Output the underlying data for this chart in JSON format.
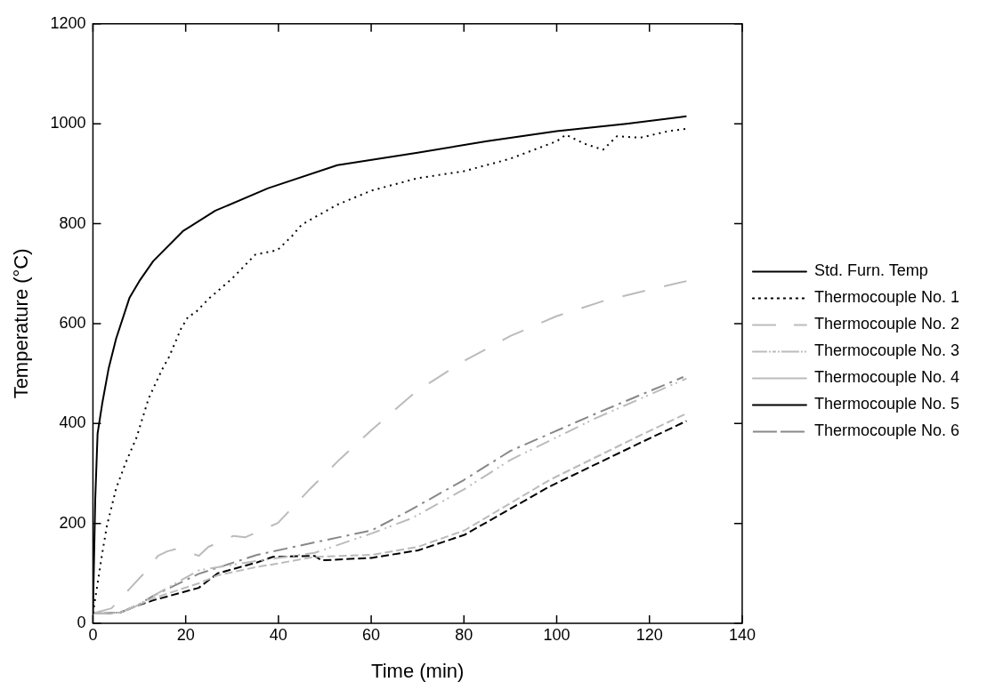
{
  "chart_data": {
    "type": "line",
    "xlabel": "Time (min)",
    "ylabel": "Temperature (°C)",
    "xlim": [
      0,
      140
    ],
    "xticks": [
      0,
      20,
      40,
      60,
      80,
      100,
      120,
      140
    ],
    "ylim": [
      0,
      1200
    ],
    "yticks": [
      0,
      200,
      400,
      600,
      800,
      1000,
      1200
    ],
    "grid": false,
    "legend": "right",
    "marker": "none",
    "series": [
      {
        "name": "Std. Furn. Temp",
        "color": "#000000",
        "line_style": "solid",
        "x": [
          0,
          0.5,
          1,
          2,
          3.4,
          5,
          7.9,
          10,
          13,
          19.4,
          26.4,
          37.8,
          52.7,
          70,
          85,
          100,
          115,
          128
        ],
        "values": [
          20,
          250,
          380,
          440,
          511,
          570,
          652,
          685,
          725,
          785,
          826,
          871,
          917,
          942,
          965,
          985,
          1000,
          1015
        ]
      },
      {
        "name": "Thermocouple No. 1",
        "color": "#000000",
        "line_style": "dotted",
        "x": [
          0,
          1,
          2,
          3,
          5,
          7,
          9.4,
          12,
          14.9,
          16.4,
          19,
          20.6,
          22,
          25,
          30,
          35,
          39.8,
          43,
          45,
          52.7,
          60,
          70,
          80,
          90,
          100,
          102,
          106,
          110,
          113,
          118,
          124,
          128
        ],
        "values": [
          20,
          80,
          140,
          195,
          270,
          320,
          372,
          450,
          508,
          533,
          590,
          615,
          621,
          650,
          690,
          738,
          747,
          776,
          798,
          838,
          866,
          891,
          905,
          930,
          965,
          978,
          960,
          948,
          975,
          972,
          985,
          990
        ]
      },
      {
        "name": "Thermocouple No. 2",
        "color": "#bbbbbb",
        "line_style": "longdash",
        "x": [
          0,
          4,
          8,
          12,
          14,
          16,
          18.4,
          22.8,
          24.9,
          30.3,
          32.8,
          39.9,
          46.7,
          53.3,
          60.1,
          69.7,
          80,
          90,
          100,
          110,
          120,
          128
        ],
        "values": [
          20,
          30,
          70,
          110,
          135,
          144,
          150,
          135,
          153,
          175,
          172,
          201,
          268,
          329,
          387,
          464,
          525,
          575,
          615,
          645,
          668,
          685
        ]
      },
      {
        "name": "Thermocouple No. 3",
        "color": "#bbbbbb",
        "line_style": "dashdotdot",
        "x": [
          0,
          3,
          6,
          9.4,
          13,
          22.8,
          35.4,
          47.8,
          60.1,
          68.7,
          80,
          90,
          108.5,
          128
        ],
        "values": [
          20,
          20,
          22,
          35,
          55,
          106,
          125,
          141,
          180,
          210,
          268,
          327,
          411,
          490
        ]
      },
      {
        "name": "Thermocouple No. 4",
        "color": "#bbbbbb",
        "line_style": "dashed",
        "x": [
          0,
          3,
          6,
          9.4,
          13,
          22.8,
          26.9,
          35.4,
          38.8,
          47.8,
          60.1,
          70.1,
          80.1,
          98.5,
          118.4,
          128
        ],
        "values": [
          20,
          20,
          22,
          35,
          50,
          80,
          96,
          113,
          118,
          133,
          137,
          153,
          186,
          287,
          378,
          420
        ]
      },
      {
        "name": "Thermocouple No. 5",
        "color": "#000000",
        "line_style": "dashed",
        "x": [
          0,
          3,
          6,
          9.4,
          13,
          22.8,
          26.9,
          35.4,
          38.8,
          47.8,
          49.3,
          60.1,
          70.1,
          80.1,
          98.5,
          118.4,
          128
        ],
        "values": [
          20,
          20,
          22,
          35,
          46,
          71,
          100,
          122,
          133,
          135,
          126,
          131,
          146,
          177,
          274,
          363,
          405
        ]
      },
      {
        "name": "Thermocouple No. 6",
        "color": "#888888",
        "line_style": "dashdot",
        "x": [
          0,
          3,
          6,
          9.4,
          13,
          22.8,
          35.4,
          47.8,
          60.1,
          68.7,
          80,
          90,
          108.5,
          127.3
        ],
        "values": [
          20,
          20,
          22,
          35,
          55,
          99,
          137,
          162,
          186,
          228,
          287,
          345,
          420,
          493
        ]
      }
    ]
  }
}
